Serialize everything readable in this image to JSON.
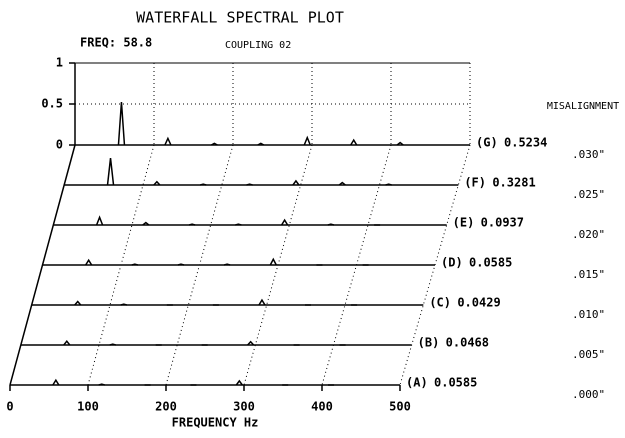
{
  "chart_data": {
    "type": "waterfall",
    "title": "WATERFALL SPECTRAL PLOT",
    "freq": "FREQ: 58.8",
    "subtitle": "COUPLING 02",
    "xlabel": "FREQUENCY Hz",
    "series_label": "MISALIGNMENT",
    "x": [
      58.8,
      117.6,
      176.4,
      235.2,
      294,
      352.8,
      411.6
    ],
    "xlim": [
      0,
      500
    ],
    "xticks": [
      0,
      100,
      200,
      300,
      400,
      500
    ],
    "ylim": [
      0,
      1
    ],
    "yticks": [
      0,
      0.5,
      1
    ],
    "grid": true,
    "color": "#000000",
    "series": [
      {
        "name": "(G)",
        "misalignment": ".030\"",
        "values": [
          0.5234,
          0.08,
          0.02,
          0.02,
          0.09,
          0.06,
          0.03
        ]
      },
      {
        "name": "(F)",
        "misalignment": ".025\"",
        "values": [
          0.3281,
          0.04,
          0.01,
          0.01,
          0.05,
          0.03,
          0.01
        ]
      },
      {
        "name": "(E)",
        "misalignment": ".020\"",
        "values": [
          0.0937,
          0.03,
          0.01,
          0.01,
          0.06,
          0.01,
          0
        ]
      },
      {
        "name": "(D)",
        "misalignment": ".015\"",
        "values": [
          0.0585,
          0.01,
          0.01,
          0.01,
          0.07,
          0,
          0
        ]
      },
      {
        "name": "(C)",
        "misalignment": ".010\"",
        "values": [
          0.0429,
          0.01,
          0,
          0,
          0.06,
          0,
          0
        ]
      },
      {
        "name": "(B)",
        "misalignment": ".005\"",
        "values": [
          0.0468,
          0.01,
          0,
          0,
          0.04,
          0,
          0
        ]
      },
      {
        "name": "(A)",
        "misalignment": ".000\"",
        "values": [
          0.0585,
          0.01,
          0,
          0,
          0.05,
          0,
          0
        ]
      }
    ]
  }
}
